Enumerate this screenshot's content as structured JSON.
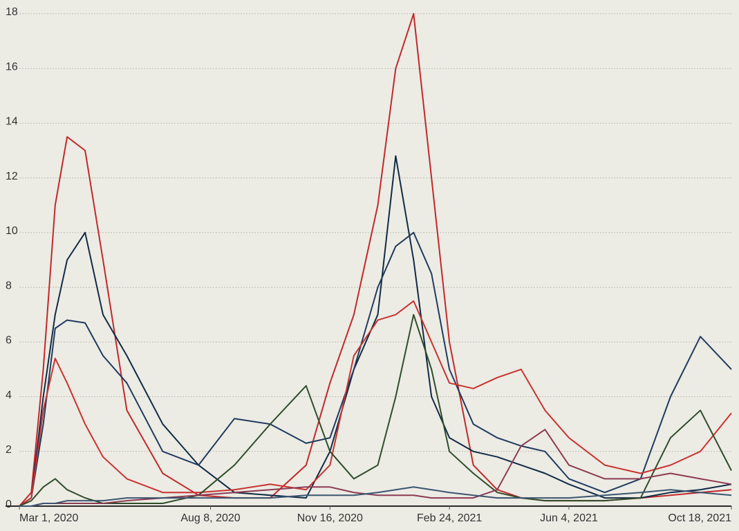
{
  "chart_data": {
    "type": "line",
    "x": [
      "2020-03-01",
      "2020-03-11",
      "2020-03-21",
      "2020-03-31",
      "2020-04-10",
      "2020-04-25",
      "2020-05-10",
      "2020-05-30",
      "2020-06-29",
      "2020-07-29",
      "2020-08-28",
      "2020-09-27",
      "2020-10-27",
      "2020-11-16",
      "2020-12-06",
      "2020-12-26",
      "2021-01-10",
      "2021-01-25",
      "2021-02-09",
      "2021-02-24",
      "2021-03-16",
      "2021-04-05",
      "2021-04-25",
      "2021-05-15",
      "2021-06-04",
      "2021-07-04",
      "2021-08-03",
      "2021-08-28",
      "2021-09-22",
      "2021-10-18"
    ],
    "series": [
      {
        "color": "#c0282b",
        "values": [
          0,
          0.5,
          5,
          11,
          13.5,
          13,
          9,
          3.5,
          1.2,
          0.4,
          0.3,
          0.3,
          1.5,
          4.5,
          7,
          11,
          16,
          18,
          12,
          6,
          1.5,
          0.6,
          0.3,
          0.2,
          0.2,
          0.2,
          0.3,
          0.4,
          0.5,
          0.6
        ]
      },
      {
        "color": "#0f2a44",
        "values": [
          0,
          0.3,
          4,
          7,
          9,
          10,
          7,
          5.5,
          3,
          1.5,
          0.5,
          0.4,
          0.3,
          2,
          5,
          7,
          12.8,
          9,
          4,
          2.5,
          2,
          1.8,
          1.5,
          1.2,
          0.8,
          0.3,
          0.3,
          0.5,
          0.6,
          0.8
        ]
      },
      {
        "color": "#1f3a5f",
        "values": [
          0,
          0.3,
          3,
          6.5,
          6.8,
          6.7,
          5.5,
          4.5,
          2,
          1.5,
          3.2,
          3,
          2.3,
          2.5,
          5,
          8,
          9.5,
          10,
          8.5,
          5,
          3,
          2.5,
          2.2,
          2,
          1,
          0.5,
          1,
          4,
          6.2,
          5
        ]
      },
      {
        "color": "#c8332f",
        "values": [
          0,
          0.3,
          3.5,
          5.4,
          4.5,
          3,
          1.8,
          1,
          0.5,
          0.5,
          0.6,
          0.8,
          0.6,
          1.5,
          5.5,
          6.8,
          7,
          7.5,
          6,
          4.5,
          4.3,
          4.7,
          5,
          3.5,
          2.5,
          1.5,
          1.2,
          1.5,
          2,
          3.4
        ]
      },
      {
        "color": "#2e4d2a",
        "values": [
          0,
          0.2,
          0.7,
          1,
          0.6,
          0.3,
          0.1,
          0.1,
          0.1,
          0.4,
          1.5,
          3,
          4.4,
          2,
          1,
          1.5,
          4,
          7,
          5,
          2,
          1.2,
          0.5,
          0.3,
          0.2,
          0.2,
          0.2,
          0.3,
          2.5,
          3.5,
          1.3
        ]
      },
      {
        "color": "#8b3a52",
        "values": [
          0,
          0,
          0.1,
          0.1,
          0.1,
          0.1,
          0.1,
          0.2,
          0.3,
          0.4,
          0.5,
          0.6,
          0.7,
          0.7,
          0.5,
          0.4,
          0.4,
          0.4,
          0.3,
          0.3,
          0.3,
          0.6,
          2.2,
          2.8,
          1.5,
          1,
          1,
          1.2,
          1,
          0.8
        ]
      },
      {
        "color": "#3a5570",
        "values": [
          0,
          0,
          0.1,
          0.1,
          0.2,
          0.2,
          0.2,
          0.3,
          0.3,
          0.3,
          0.3,
          0.3,
          0.4,
          0.4,
          0.4,
          0.5,
          0.6,
          0.7,
          0.6,
          0.5,
          0.4,
          0.3,
          0.3,
          0.3,
          0.3,
          0.4,
          0.5,
          0.6,
          0.5,
          0.4
        ]
      }
    ],
    "xlim": [
      "2020-03-01",
      "2021-10-18"
    ],
    "xticks": [
      {
        "value": "2020-03-01",
        "label": "Mar 1, 2020"
      },
      {
        "value": "2020-08-08",
        "label": "Aug 8, 2020"
      },
      {
        "value": "2020-11-16",
        "label": "Nov 16, 2020"
      },
      {
        "value": "2021-02-24",
        "label": "Feb 24, 2021"
      },
      {
        "value": "2021-06-04",
        "label": "Jun 4, 2021"
      },
      {
        "value": "2021-10-18",
        "label": "Oct 18, 2021"
      }
    ],
    "ylim": [
      0,
      18.2
    ],
    "yticks": [
      0,
      2,
      4,
      6,
      8,
      10,
      12,
      14,
      16,
      18
    ],
    "grid": true
  }
}
